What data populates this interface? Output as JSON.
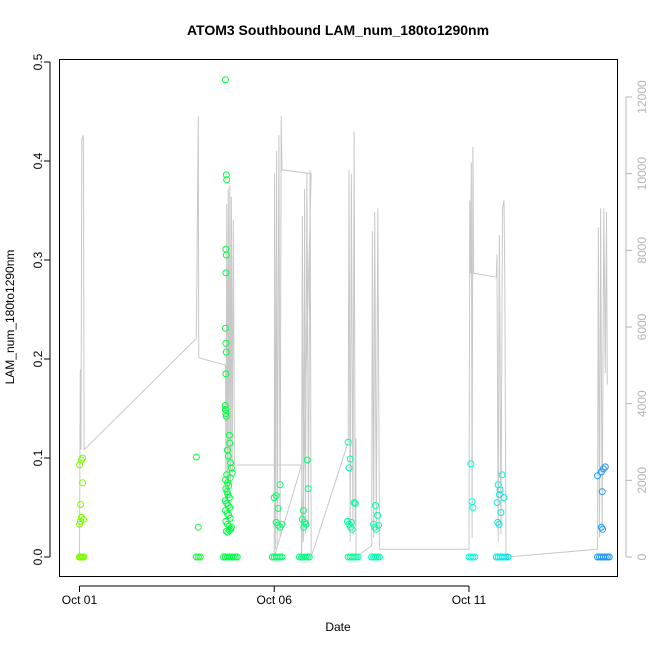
{
  "chart_data": {
    "type": "scatter",
    "title": "ATOM3 Southbound LAM_num_180to1290nm",
    "xlabel": "Date",
    "ylabel": "LAM_num_180to1290nm",
    "y_ticks": [
      "0.0",
      "0.1",
      "0.2",
      "0.3",
      "0.4",
      "0.5"
    ],
    "y_tick_values": [
      0,
      0.1,
      0.2,
      0.3,
      0.4,
      0.5
    ],
    "ylim": [
      0,
      0.5
    ],
    "y2_ticks": [
      "0",
      "2000",
      "4000",
      "6000",
      "8000",
      "10000",
      "12000"
    ],
    "y2_tick_values": [
      0,
      2000,
      4000,
      6000,
      8000,
      10000,
      12000
    ],
    "y2lim": [
      0,
      12000
    ],
    "x_ticks": [
      "Oct 01",
      "Oct 06",
      "Oct 11"
    ],
    "x_tick_values": [
      0,
      5,
      10
    ],
    "xlim": [
      -0.5,
      13.8
    ],
    "grid": false,
    "legend": "none",
    "colors": {
      "series_gradient": [
        "#7cfc00",
        "#00ff33",
        "#00ff99",
        "#00ffdd",
        "#1e90ff"
      ],
      "secondary_line": "#c8c8c8",
      "axis": "#000000",
      "secondary_axis": "#b4b4b4"
    },
    "series": [
      {
        "values_role": "primary_points",
        "points": [
          {
            "x": 0.0,
            "y": 0.0
          },
          {
            "x": 0.02,
            "y": 0.0
          },
          {
            "x": 0.05,
            "y": 0.0
          },
          {
            "x": 0.08,
            "y": 0.0
          },
          {
            "x": 0.11,
            "y": 0.0
          },
          {
            "x": 0.0,
            "y": 0.033
          },
          {
            "x": 0.02,
            "y": 0.036
          },
          {
            "x": 0.05,
            "y": 0.04
          },
          {
            "x": 0.03,
            "y": 0.053
          },
          {
            "x": 0.08,
            "y": 0.075
          },
          {
            "x": 0.0,
            "y": 0.093
          },
          {
            "x": 0.05,
            "y": 0.098
          },
          {
            "x": 0.08,
            "y": 0.1
          },
          {
            "x": 0.1,
            "y": 0.038
          },
          {
            "x": 3.0,
            "y": 0.0
          },
          {
            "x": 3.05,
            "y": 0.0
          },
          {
            "x": 3.1,
            "y": 0.0
          },
          {
            "x": 3.0,
            "y": 0.101
          },
          {
            "x": 3.05,
            "y": 0.03
          },
          {
            "x": 3.7,
            "y": 0.0
          },
          {
            "x": 3.75,
            "y": 0.0
          },
          {
            "x": 3.8,
            "y": 0.0
          },
          {
            "x": 3.85,
            "y": 0.0
          },
          {
            "x": 3.9,
            "y": 0.0
          },
          {
            "x": 3.95,
            "y": 0.0
          },
          {
            "x": 4.0,
            "y": 0.0
          },
          {
            "x": 4.05,
            "y": 0.0
          },
          {
            "x": 3.75,
            "y": 0.482
          },
          {
            "x": 3.77,
            "y": 0.386
          },
          {
            "x": 3.78,
            "y": 0.381
          },
          {
            "x": 3.76,
            "y": 0.311
          },
          {
            "x": 3.77,
            "y": 0.305
          },
          {
            "x": 3.76,
            "y": 0.287
          },
          {
            "x": 3.75,
            "y": 0.231
          },
          {
            "x": 3.76,
            "y": 0.216
          },
          {
            "x": 3.77,
            "y": 0.207
          },
          {
            "x": 3.76,
            "y": 0.185
          },
          {
            "x": 3.74,
            "y": 0.153
          },
          {
            "x": 3.75,
            "y": 0.149
          },
          {
            "x": 3.76,
            "y": 0.145
          },
          {
            "x": 3.77,
            "y": 0.142
          },
          {
            "x": 3.85,
            "y": 0.123
          },
          {
            "x": 3.86,
            "y": 0.115
          },
          {
            "x": 3.8,
            "y": 0.108
          },
          {
            "x": 3.82,
            "y": 0.102
          },
          {
            "x": 3.88,
            "y": 0.095
          },
          {
            "x": 3.9,
            "y": 0.09
          },
          {
            "x": 3.92,
            "y": 0.085
          },
          {
            "x": 3.87,
            "y": 0.08
          },
          {
            "x": 3.78,
            "y": 0.083
          },
          {
            "x": 3.75,
            "y": 0.078
          },
          {
            "x": 3.8,
            "y": 0.075
          },
          {
            "x": 3.83,
            "y": 0.072
          },
          {
            "x": 3.76,
            "y": 0.069
          },
          {
            "x": 3.79,
            "y": 0.066
          },
          {
            "x": 3.81,
            "y": 0.063
          },
          {
            "x": 3.85,
            "y": 0.06
          },
          {
            "x": 3.74,
            "y": 0.057
          },
          {
            "x": 3.78,
            "y": 0.054
          },
          {
            "x": 3.82,
            "y": 0.052
          },
          {
            "x": 3.86,
            "y": 0.05
          },
          {
            "x": 3.75,
            "y": 0.047
          },
          {
            "x": 3.79,
            "y": 0.044
          },
          {
            "x": 3.83,
            "y": 0.042
          },
          {
            "x": 3.87,
            "y": 0.039
          },
          {
            "x": 3.76,
            "y": 0.036
          },
          {
            "x": 3.8,
            "y": 0.033
          },
          {
            "x": 3.84,
            "y": 0.031
          },
          {
            "x": 3.88,
            "y": 0.028
          },
          {
            "x": 3.77,
            "y": 0.026
          },
          {
            "x": 3.81,
            "y": 0.025
          },
          {
            "x": 3.85,
            "y": 0.027
          },
          {
            "x": 3.9,
            "y": 0.03
          },
          {
            "x": 4.95,
            "y": 0.0
          },
          {
            "x": 5.0,
            "y": 0.0
          },
          {
            "x": 5.05,
            "y": 0.0
          },
          {
            "x": 5.1,
            "y": 0.0
          },
          {
            "x": 5.15,
            "y": 0.0
          },
          {
            "x": 5.2,
            "y": 0.0
          },
          {
            "x": 5.0,
            "y": 0.06
          },
          {
            "x": 5.05,
            "y": 0.062
          },
          {
            "x": 5.15,
            "y": 0.073
          },
          {
            "x": 5.1,
            "y": 0.049
          },
          {
            "x": 5.05,
            "y": 0.035
          },
          {
            "x": 5.1,
            "y": 0.032
          },
          {
            "x": 5.15,
            "y": 0.03
          },
          {
            "x": 5.2,
            "y": 0.033
          },
          {
            "x": 5.65,
            "y": 0.0
          },
          {
            "x": 5.7,
            "y": 0.0
          },
          {
            "x": 5.75,
            "y": 0.0
          },
          {
            "x": 5.8,
            "y": 0.0
          },
          {
            "x": 5.85,
            "y": 0.0
          },
          {
            "x": 5.9,
            "y": 0.0
          },
          {
            "x": 5.85,
            "y": 0.098
          },
          {
            "x": 5.87,
            "y": 0.069
          },
          {
            "x": 5.75,
            "y": 0.047
          },
          {
            "x": 5.72,
            "y": 0.038
          },
          {
            "x": 5.78,
            "y": 0.035
          },
          {
            "x": 5.82,
            "y": 0.033
          },
          {
            "x": 5.76,
            "y": 0.03
          },
          {
            "x": 6.9,
            "y": 0.0
          },
          {
            "x": 6.95,
            "y": 0.0
          },
          {
            "x": 7.0,
            "y": 0.0
          },
          {
            "x": 7.05,
            "y": 0.0
          },
          {
            "x": 7.1,
            "y": 0.0
          },
          {
            "x": 7.15,
            "y": 0.0
          },
          {
            "x": 6.9,
            "y": 0.116
          },
          {
            "x": 6.95,
            "y": 0.099
          },
          {
            "x": 6.92,
            "y": 0.09
          },
          {
            "x": 7.05,
            "y": 0.055
          },
          {
            "x": 7.08,
            "y": 0.054
          },
          {
            "x": 6.88,
            "y": 0.036
          },
          {
            "x": 6.92,
            "y": 0.033
          },
          {
            "x": 6.96,
            "y": 0.03
          },
          {
            "x": 7.0,
            "y": 0.028
          },
          {
            "x": 6.98,
            "y": 0.035
          },
          {
            "x": 7.5,
            "y": 0.0
          },
          {
            "x": 7.55,
            "y": 0.0
          },
          {
            "x": 7.6,
            "y": 0.0
          },
          {
            "x": 7.65,
            "y": 0.0
          },
          {
            "x": 7.7,
            "y": 0.0
          },
          {
            "x": 7.6,
            "y": 0.052
          },
          {
            "x": 7.65,
            "y": 0.042
          },
          {
            "x": 7.55,
            "y": 0.033
          },
          {
            "x": 7.58,
            "y": 0.03
          },
          {
            "x": 7.62,
            "y": 0.028
          },
          {
            "x": 7.68,
            "y": 0.032
          },
          {
            "x": 10.0,
            "y": 0.0
          },
          {
            "x": 10.05,
            "y": 0.0
          },
          {
            "x": 10.1,
            "y": 0.0
          },
          {
            "x": 10.15,
            "y": 0.0
          },
          {
            "x": 10.05,
            "y": 0.094
          },
          {
            "x": 10.08,
            "y": 0.056
          },
          {
            "x": 10.1,
            "y": 0.05
          },
          {
            "x": 10.7,
            "y": 0.0
          },
          {
            "x": 10.75,
            "y": 0.0
          },
          {
            "x": 10.8,
            "y": 0.0
          },
          {
            "x": 10.85,
            "y": 0.0
          },
          {
            "x": 10.9,
            "y": 0.0
          },
          {
            "x": 10.95,
            "y": 0.0
          },
          {
            "x": 11.0,
            "y": 0.0
          },
          {
            "x": 10.85,
            "y": 0.083
          },
          {
            "x": 10.75,
            "y": 0.073
          },
          {
            "x": 10.8,
            "y": 0.068
          },
          {
            "x": 10.78,
            "y": 0.063
          },
          {
            "x": 10.9,
            "y": 0.06
          },
          {
            "x": 10.72,
            "y": 0.055
          },
          {
            "x": 10.82,
            "y": 0.045
          },
          {
            "x": 10.74,
            "y": 0.035
          },
          {
            "x": 10.77,
            "y": 0.033
          },
          {
            "x": 13.3,
            "y": 0.0
          },
          {
            "x": 13.35,
            "y": 0.0
          },
          {
            "x": 13.4,
            "y": 0.0
          },
          {
            "x": 13.45,
            "y": 0.0
          },
          {
            "x": 13.5,
            "y": 0.0
          },
          {
            "x": 13.55,
            "y": 0.0
          },
          {
            "x": 13.6,
            "y": 0.0
          },
          {
            "x": 13.5,
            "y": 0.091
          },
          {
            "x": 13.45,
            "y": 0.089
          },
          {
            "x": 13.4,
            "y": 0.086
          },
          {
            "x": 13.3,
            "y": 0.082
          },
          {
            "x": 13.42,
            "y": 0.066
          },
          {
            "x": 13.4,
            "y": 0.03
          },
          {
            "x": 13.43,
            "y": 0.028
          }
        ]
      },
      {
        "values_role": "secondary_line",
        "axis": "right",
        "points": [
          {
            "x": 0.0,
            "y": 0
          },
          {
            "x": 0.02,
            "y": 4900
          },
          {
            "x": 0.04,
            "y": 2800
          },
          {
            "x": 0.06,
            "y": 10900
          },
          {
            "x": 0.1,
            "y": 11000
          },
          {
            "x": 0.12,
            "y": 2800
          },
          {
            "x": 3.0,
            "y": 5700
          },
          {
            "x": 3.05,
            "y": 11500
          },
          {
            "x": 3.06,
            "y": 5200
          },
          {
            "x": 3.75,
            "y": 5000
          },
          {
            "x": 3.76,
            "y": 1200
          },
          {
            "x": 3.78,
            "y": 9200
          },
          {
            "x": 3.8,
            "y": 1500
          },
          {
            "x": 3.82,
            "y": 9600
          },
          {
            "x": 3.84,
            "y": 1800
          },
          {
            "x": 3.86,
            "y": 9700
          },
          {
            "x": 3.88,
            "y": 2000
          },
          {
            "x": 3.9,
            "y": 9400
          },
          {
            "x": 3.92,
            "y": 2200
          },
          {
            "x": 3.95,
            "y": 8800
          },
          {
            "x": 3.98,
            "y": 2400
          },
          {
            "x": 5.7,
            "y": 2400
          },
          {
            "x": 5.0,
            "y": 0
          },
          {
            "x": 5.01,
            "y": 10000
          },
          {
            "x": 5.03,
            "y": 200
          },
          {
            "x": 5.06,
            "y": 10600
          },
          {
            "x": 5.08,
            "y": 300
          },
          {
            "x": 5.12,
            "y": 11000
          },
          {
            "x": 5.15,
            "y": 500
          },
          {
            "x": 5.18,
            "y": 11500
          },
          {
            "x": 5.2,
            "y": 10100
          },
          {
            "x": 5.95,
            "y": 10000
          },
          {
            "x": 5.7,
            "y": 0
          },
          {
            "x": 5.72,
            "y": 8900
          },
          {
            "x": 5.75,
            "y": 400
          },
          {
            "x": 5.78,
            "y": 9600
          },
          {
            "x": 5.8,
            "y": 600
          },
          {
            "x": 5.84,
            "y": 10000
          },
          {
            "x": 5.88,
            "y": 800
          },
          {
            "x": 5.92,
            "y": 10100
          },
          {
            "x": 5.95,
            "y": 0
          },
          {
            "x": 6.9,
            "y": 3000
          },
          {
            "x": 6.92,
            "y": 10100
          },
          {
            "x": 6.95,
            "y": 400
          },
          {
            "x": 6.98,
            "y": 10000
          },
          {
            "x": 7.02,
            "y": 600
          },
          {
            "x": 7.05,
            "y": 11100
          },
          {
            "x": 7.08,
            "y": 800
          },
          {
            "x": 7.1,
            "y": 3100
          },
          {
            "x": 7.1,
            "y": 0
          },
          {
            "x": 7.5,
            "y": 300
          },
          {
            "x": 7.52,
            "y": 8500
          },
          {
            "x": 7.55,
            "y": 500
          },
          {
            "x": 7.58,
            "y": 9000
          },
          {
            "x": 7.62,
            "y": 700
          },
          {
            "x": 7.66,
            "y": 9100
          },
          {
            "x": 7.7,
            "y": 800
          },
          {
            "x": 7.7,
            "y": 200
          },
          {
            "x": 10.0,
            "y": 200
          },
          {
            "x": 10.02,
            "y": 9300
          },
          {
            "x": 10.04,
            "y": 7400
          },
          {
            "x": 10.06,
            "y": 10300
          },
          {
            "x": 10.08,
            "y": 500
          },
          {
            "x": 10.1,
            "y": 10700
          },
          {
            "x": 10.12,
            "y": 7400
          },
          {
            "x": 10.7,
            "y": 7300
          },
          {
            "x": 10.72,
            "y": 7900
          },
          {
            "x": 10.75,
            "y": 400
          },
          {
            "x": 10.78,
            "y": 8400
          },
          {
            "x": 10.82,
            "y": 600
          },
          {
            "x": 10.86,
            "y": 9100
          },
          {
            "x": 10.9,
            "y": 9300
          },
          {
            "x": 10.92,
            "y": 7300
          },
          {
            "x": 10.95,
            "y": 0
          },
          {
            "x": 13.3,
            "y": 200
          },
          {
            "x": 13.32,
            "y": 8600
          },
          {
            "x": 13.35,
            "y": 500
          },
          {
            "x": 13.38,
            "y": 9100
          },
          {
            "x": 13.42,
            "y": 700
          },
          {
            "x": 13.46,
            "y": 9100
          },
          {
            "x": 13.5,
            "y": 4800
          },
          {
            "x": 13.53,
            "y": 9000
          },
          {
            "x": 13.55,
            "y": 4500
          }
        ]
      }
    ]
  }
}
